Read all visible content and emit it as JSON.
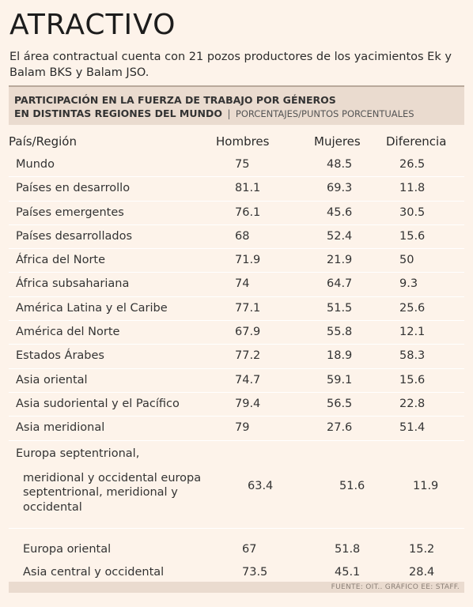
{
  "header": {
    "title": "ATRACTIVO",
    "subtitle": "El área contractual cuenta con 21 pozos productores de los yacimientos Ek y Balam BKS y Balam JSO."
  },
  "banner": {
    "line1": "PARTICIPACIÓN EN LA FUERZA DE TRABAJO POR GÉNEROS",
    "line2": "EN DISTINTAS REGIONES DEL MUNDO",
    "separator": "|",
    "unit": "PORCENTAJES/PUNTOS PORCENTUALES"
  },
  "table": {
    "columns": [
      "País/Región",
      "Hombres",
      "Mujeres",
      "Diferencia"
    ],
    "rows": [
      {
        "region": "Mundo",
        "hombres": "75",
        "mujeres": "48.5",
        "diferencia": "26.5"
      },
      {
        "region": "Países en desarrollo",
        "hombres": "81.1",
        "mujeres": "69.3",
        "diferencia": "11.8"
      },
      {
        "region": "Países emergentes",
        "hombres": "76.1",
        "mujeres": "45.6",
        "diferencia": "30.5"
      },
      {
        "region": "Países desarrollados",
        "hombres": "68",
        "mujeres": "52.4",
        "diferencia": "15.6"
      },
      {
        "region": "África del Norte",
        "hombres": "71.9",
        "mujeres": "21.9",
        "diferencia": "50"
      },
      {
        "region": "África subsahariana",
        "hombres": "74",
        "mujeres": "64.7",
        "diferencia": "9.3"
      },
      {
        "region": "América Latina y el Caribe",
        "hombres": "77.1",
        "mujeres": "51.5",
        "diferencia": "25.6"
      },
      {
        "region": "América del Norte",
        "hombres": "67.9",
        "mujeres": "55.8",
        "diferencia": "12.1"
      },
      {
        "region": "Estados Árabes",
        "hombres": "77.2",
        "mujeres": "18.9",
        "diferencia": "58.3"
      },
      {
        "region": "Asia oriental",
        "hombres": "74.7",
        "mujeres": "59.1",
        "diferencia": "15.6"
      },
      {
        "region": "Asia sudoriental y el Pacífico",
        "hombres": "79.4",
        "mujeres": "56.5",
        "diferencia": "22.8"
      },
      {
        "region": "Asia meridional",
        "hombres": "79",
        "mujeres": "27.6",
        "diferencia": "51.4"
      }
    ],
    "europa": {
      "line1": "Europa septentrional,",
      "line2": "meridional y occidental europa septentrional, meridional y occidental",
      "hombres": "63.4",
      "mujeres": "51.6",
      "diferencia": "11.9"
    },
    "tail_rows": [
      {
        "region": "Europa oriental",
        "hombres": "67",
        "mujeres": "51.8",
        "diferencia": "15.2"
      },
      {
        "region": "Asia central y occidental",
        "hombres": "73.5",
        "mujeres": "45.1",
        "diferencia": "28.4"
      }
    ]
  },
  "footer": {
    "source": "FUENTE: OIT.. GRÁFICO EE: STAFF."
  },
  "colors": {
    "background": "#fdf3ea",
    "banner": "#eadbcf",
    "row_divider": "#ffffff"
  }
}
